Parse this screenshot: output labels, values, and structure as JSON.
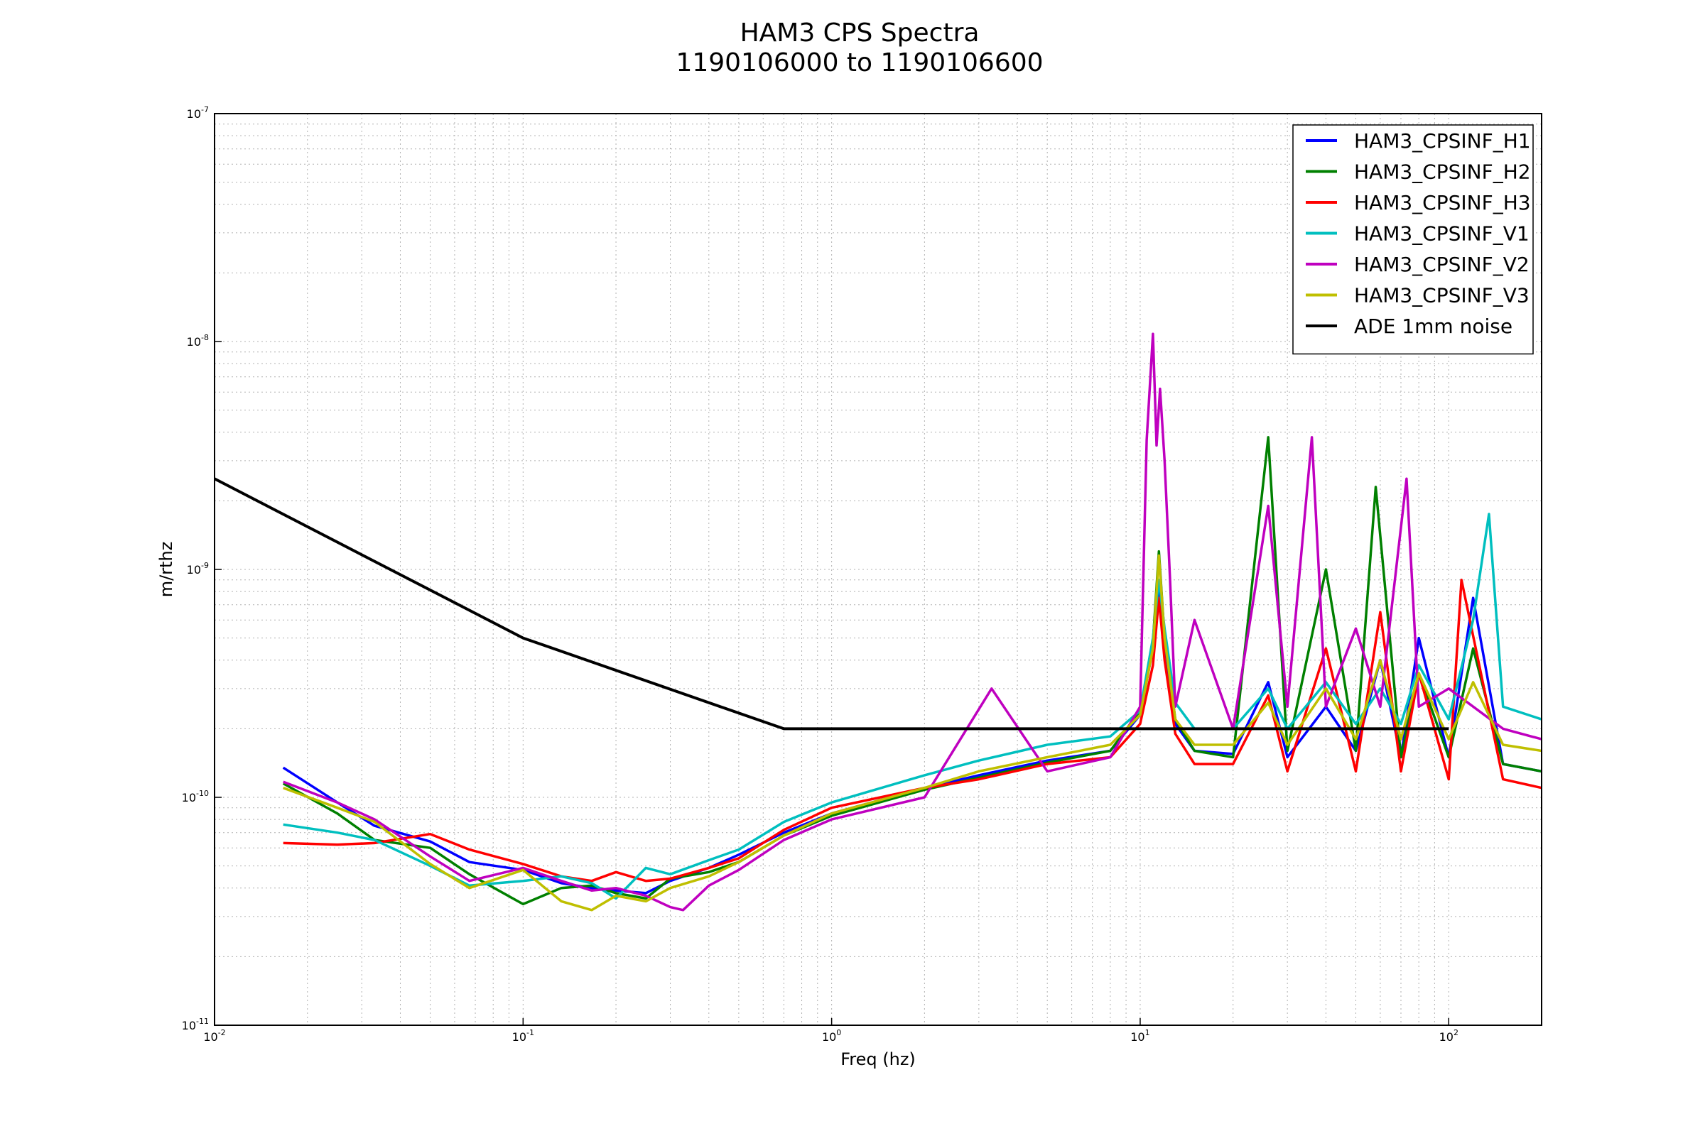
{
  "chart_data": {
    "type": "line",
    "title": "HAM3 CPS Spectra",
    "subtitle": "1190106000 to 1190106600",
    "xlabel": "Freq (hz)",
    "ylabel": "m/rthz",
    "xscale": "log",
    "yscale": "log",
    "xlim": [
      0.01,
      200
    ],
    "ylim": [
      1e-11,
      1e-07
    ],
    "grid": true,
    "legend_position": "top-right",
    "xticks": [
      {
        "value": 0.01,
        "base": "10",
        "exp": "-2"
      },
      {
        "value": 0.1,
        "base": "10",
        "exp": "-1"
      },
      {
        "value": 1,
        "base": "10",
        "exp": "0"
      },
      {
        "value": 10,
        "base": "10",
        "exp": "1"
      },
      {
        "value": 100,
        "base": "10",
        "exp": "2"
      }
    ],
    "yticks": [
      {
        "value": 1e-11,
        "base": "10",
        "exp": "-11"
      },
      {
        "value": 1e-10,
        "base": "10",
        "exp": "-10"
      },
      {
        "value": 1e-09,
        "base": "10",
        "exp": "-9"
      },
      {
        "value": 1e-08,
        "base": "10",
        "exp": "-8"
      },
      {
        "value": 1e-07,
        "base": "10",
        "exp": "-7"
      }
    ],
    "series": [
      {
        "name": "HAM3_CPSINF_H1",
        "color": "#0000ff",
        "x": [
          0.0167,
          0.025,
          0.033,
          0.05,
          0.067,
          0.1,
          0.133,
          0.167,
          0.2,
          0.25,
          0.3,
          0.4,
          0.5,
          0.7,
          1,
          2,
          3,
          5,
          8,
          10,
          11,
          11.5,
          12,
          13,
          15,
          20,
          26,
          30,
          40,
          50,
          60,
          70,
          80,
          100,
          120,
          150,
          200
        ],
        "y": [
          1.35e-10,
          9.5e-11,
          7.5e-11,
          6.4e-11,
          5.2e-11,
          4.8e-11,
          4.2e-11,
          4e-11,
          3.9e-11,
          3.8e-11,
          4.3e-11,
          4.9e-11,
          5.6e-11,
          7e-11,
          8.5e-11,
          1.1e-10,
          1.25e-10,
          1.45e-10,
          1.6e-10,
          2.3e-10,
          4.5e-10,
          8.5e-10,
          4.8e-10,
          2.1e-10,
          1.6e-10,
          1.55e-10,
          3.2e-10,
          1.5e-10,
          2.5e-10,
          1.6e-10,
          4e-10,
          1.5e-10,
          5e-10,
          1.5e-10,
          7.5e-10,
          1.4e-10,
          1.3e-10
        ]
      },
      {
        "name": "HAM3_CPSINF_H2",
        "color": "#008000",
        "x": [
          0.0167,
          0.025,
          0.033,
          0.05,
          0.067,
          0.1,
          0.133,
          0.167,
          0.2,
          0.25,
          0.3,
          0.4,
          0.5,
          0.7,
          1,
          2,
          3,
          5,
          8,
          10,
          11,
          11.5,
          12,
          13,
          15,
          20,
          26,
          30,
          40,
          50,
          58,
          70,
          80,
          100,
          120,
          150,
          200
        ],
        "y": [
          1.15e-10,
          8.5e-11,
          6.5e-11,
          6e-11,
          4.6e-11,
          3.4e-11,
          4e-11,
          4.1e-11,
          3.8e-11,
          3.6e-11,
          4.4e-11,
          4.7e-11,
          5.2e-11,
          6.8e-11,
          8.3e-11,
          1.08e-10,
          1.22e-10,
          1.42e-10,
          1.6e-10,
          2.4e-10,
          4.8e-10,
          1.2e-09,
          5e-10,
          2.2e-10,
          1.6e-10,
          1.5e-10,
          3.8e-09,
          1.6e-10,
          1e-09,
          1.6e-10,
          2.3e-09,
          1.5e-10,
          3.5e-10,
          1.5e-10,
          4.5e-10,
          1.4e-10,
          1.3e-10
        ]
      },
      {
        "name": "HAM3_CPSINF_H3",
        "color": "#ff0000",
        "x": [
          0.0167,
          0.025,
          0.033,
          0.05,
          0.067,
          0.1,
          0.133,
          0.167,
          0.2,
          0.25,
          0.3,
          0.4,
          0.5,
          0.7,
          1,
          2,
          3,
          5,
          8,
          10,
          11,
          11.5,
          12,
          13,
          15,
          20,
          26,
          30,
          40,
          50,
          60,
          70,
          80,
          100,
          110,
          150,
          200
        ],
        "y": [
          6.3e-11,
          6.2e-11,
          6.3e-11,
          6.9e-11,
          5.9e-11,
          5.1e-11,
          4.5e-11,
          4.3e-11,
          4.7e-11,
          4.3e-11,
          4.4e-11,
          4.9e-11,
          5.4e-11,
          7.2e-11,
          9e-11,
          1.1e-10,
          1.2e-10,
          1.4e-10,
          1.5e-10,
          2.1e-10,
          3.8e-10,
          7.5e-10,
          4e-10,
          1.9e-10,
          1.4e-10,
          1.4e-10,
          2.8e-10,
          1.3e-10,
          4.5e-10,
          1.3e-10,
          6.5e-10,
          1.3e-10,
          3.5e-10,
          1.2e-10,
          9e-10,
          1.2e-10,
          1.1e-10
        ]
      },
      {
        "name": "HAM3_CPSINF_V1",
        "color": "#00bfbf",
        "x": [
          0.0167,
          0.025,
          0.033,
          0.05,
          0.067,
          0.1,
          0.133,
          0.167,
          0.2,
          0.25,
          0.3,
          0.4,
          0.5,
          0.7,
          1,
          2,
          3,
          5,
          8,
          10,
          11,
          11.5,
          12,
          13,
          15,
          20,
          26,
          30,
          40,
          50,
          60,
          70,
          80,
          100,
          120,
          135,
          150,
          200
        ],
        "y": [
          7.6e-11,
          7e-11,
          6.5e-11,
          5e-11,
          4.1e-11,
          4.3e-11,
          4.5e-11,
          4.2e-11,
          3.6e-11,
          4.9e-11,
          4.6e-11,
          5.3e-11,
          5.9e-11,
          7.8e-11,
          9.5e-11,
          1.25e-10,
          1.45e-10,
          1.7e-10,
          1.85e-10,
          2.4e-10,
          5e-10,
          9e-10,
          5.5e-10,
          2.6e-10,
          2e-10,
          2e-10,
          3e-10,
          2e-10,
          3.2e-10,
          2.1e-10,
          3e-10,
          2.1e-10,
          3.8e-10,
          2.2e-10,
          6e-10,
          1.75e-09,
          2.5e-10,
          2.2e-10
        ]
      },
      {
        "name": "HAM3_CPSINF_V2",
        "color": "#bf00bf",
        "x": [
          0.0167,
          0.025,
          0.033,
          0.05,
          0.067,
          0.1,
          0.133,
          0.167,
          0.2,
          0.25,
          0.3,
          0.33,
          0.4,
          0.5,
          0.7,
          1,
          2,
          3.3,
          5,
          8,
          10,
          10.5,
          11,
          11.3,
          11.6,
          12,
          12.5,
          13,
          15,
          20,
          26,
          30,
          36,
          40,
          50,
          60,
          73,
          80,
          100,
          150,
          200
        ],
        "y": [
          1.17e-10,
          9.5e-11,
          8e-11,
          5.5e-11,
          4.3e-11,
          4.9e-11,
          4.3e-11,
          3.9e-11,
          4e-11,
          3.7e-11,
          3.3e-11,
          3.2e-11,
          4.1e-11,
          4.8e-11,
          6.5e-11,
          8e-11,
          1e-10,
          3e-10,
          1.3e-10,
          1.5e-10,
          2.5e-10,
          3.7e-09,
          1.08e-08,
          3.5e-09,
          6.2e-09,
          3e-09,
          9e-10,
          2.5e-10,
          6e-10,
          2e-10,
          1.9e-09,
          2.5e-10,
          3.8e-09,
          2.5e-10,
          5.5e-10,
          2.5e-10,
          2.5e-09,
          2.5e-10,
          3e-10,
          2e-10,
          1.8e-10
        ]
      },
      {
        "name": "HAM3_CPSINF_V3",
        "color": "#bfbf00",
        "x": [
          0.0167,
          0.025,
          0.033,
          0.05,
          0.067,
          0.1,
          0.133,
          0.167,
          0.2,
          0.25,
          0.3,
          0.4,
          0.5,
          0.7,
          1,
          2,
          3,
          5,
          8,
          10,
          11,
          11.5,
          12,
          13,
          15,
          20,
          26,
          30,
          40,
          50,
          60,
          70,
          80,
          100,
          120,
          150,
          200
        ],
        "y": [
          1.1e-10,
          9e-11,
          7.8e-11,
          5.1e-11,
          4e-11,
          4.8e-11,
          3.5e-11,
          3.2e-11,
          3.7e-11,
          3.5e-11,
          4e-11,
          4.5e-11,
          5.2e-11,
          6.8e-11,
          8.5e-11,
          1.1e-10,
          1.3e-10,
          1.5e-10,
          1.7e-10,
          2.3e-10,
          4.5e-10,
          1.15e-09,
          5e-10,
          2.2e-10,
          1.7e-10,
          1.7e-10,
          2.6e-10,
          1.7e-10,
          3e-10,
          1.8e-10,
          4e-10,
          1.8e-10,
          3.5e-10,
          1.8e-10,
          3.2e-10,
          1.7e-10,
          1.6e-10
        ]
      },
      {
        "name": "ADE 1mm noise",
        "color": "#000000",
        "x": [
          0.01,
          0.1,
          0.7,
          100
        ],
        "y": [
          2.5e-09,
          5e-10,
          2e-10,
          2e-10
        ]
      }
    ]
  }
}
